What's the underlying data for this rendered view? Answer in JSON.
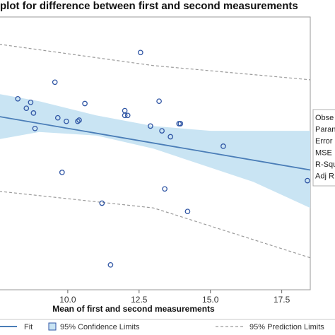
{
  "chart_data": {
    "type": "scatter",
    "title": "plot for difference between first and second measurements",
    "xlabel": "Mean of first and second measurements",
    "ylabel": "",
    "xlim": [
      7.6,
      18.5
    ],
    "ylim": [
      -5.75,
      5.75
    ],
    "x_ticks": [
      10.0,
      12.5,
      15.0,
      17.5
    ],
    "x_tick_labels": [
      "10.0",
      "12.5",
      "15.0",
      "17.5"
    ],
    "grid": false,
    "points": [
      {
        "x": 8.25,
        "y": 2.3
      },
      {
        "x": 8.7,
        "y": 2.15
      },
      {
        "x": 8.55,
        "y": 1.9
      },
      {
        "x": 8.8,
        "y": 1.7
      },
      {
        "x": 8.85,
        "y": 1.05
      },
      {
        "x": 9.55,
        "y": 3.0
      },
      {
        "x": 9.65,
        "y": 1.5
      },
      {
        "x": 9.95,
        "y": 1.35
      },
      {
        "x": 9.8,
        "y": -0.8
      },
      {
        "x": 10.35,
        "y": 1.35
      },
      {
        "x": 10.4,
        "y": 1.4
      },
      {
        "x": 10.6,
        "y": 2.1
      },
      {
        "x": 11.2,
        "y": -2.1
      },
      {
        "x": 11.5,
        "y": -4.7
      },
      {
        "x": 12.0,
        "y": 1.8
      },
      {
        "x": 12.0,
        "y": 1.6
      },
      {
        "x": 12.1,
        "y": 1.6
      },
      {
        "x": 12.55,
        "y": 4.25
      },
      {
        "x": 12.9,
        "y": 1.15
      },
      {
        "x": 13.2,
        "y": 2.2
      },
      {
        "x": 13.3,
        "y": 0.95
      },
      {
        "x": 13.4,
        "y": -1.5
      },
      {
        "x": 13.6,
        "y": 0.7
      },
      {
        "x": 13.9,
        "y": 1.25
      },
      {
        "x": 13.95,
        "y": 1.25
      },
      {
        "x": 14.2,
        "y": -2.45
      },
      {
        "x": 15.45,
        "y": 0.3
      },
      {
        "x": 18.4,
        "y": -1.15
      }
    ],
    "fit": {
      "x": [
        7.6,
        18.5
      ],
      "y": [
        1.55,
        -0.7
      ]
    },
    "confidence_band": {
      "x": [
        7.6,
        9.0,
        11.0,
        13.0,
        15.0,
        16.5,
        18.5
      ],
      "lower": [
        0.6,
        0.9,
        0.75,
        0.2,
        -0.6,
        -1.2,
        -2.3
      ],
      "upper": [
        2.5,
        2.2,
        1.6,
        1.15,
        0.95,
        0.95,
        0.95
      ]
    },
    "prediction_limits": {
      "x": [
        7.6,
        13.0,
        18.5
      ],
      "upper": [
        4.6,
        3.7,
        3.1
      ],
      "lower": [
        -1.6,
        -2.3,
        -4.4
      ]
    },
    "colors": {
      "fit": "#4a7db7",
      "band": "#c9e4f3",
      "points": "#2f55a4",
      "prediction": "#9a9a9a"
    },
    "legend": {
      "placement": "bottom",
      "entries": [
        "Fit",
        "95% Confidence Limits",
        "95% Prediction Limits"
      ]
    },
    "stats_labels": [
      "Obse",
      "Paran",
      "Error",
      "MSE",
      "R-Squ",
      "Adj R"
    ]
  }
}
